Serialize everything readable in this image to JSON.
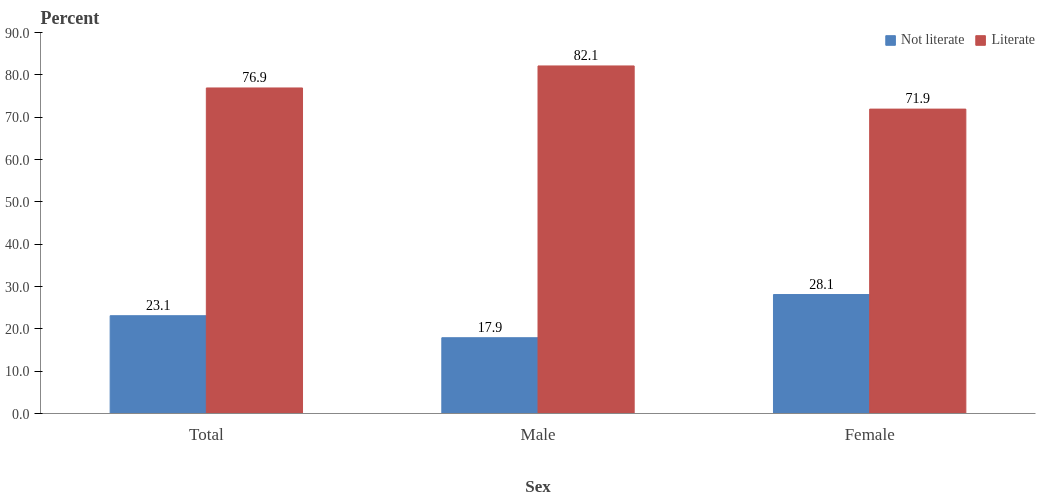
{
  "chart_data": {
    "type": "bar",
    "ylabel": "Percent",
    "xlabel": "Sex",
    "categories": [
      "Total",
      "Male",
      "Female"
    ],
    "series": [
      {
        "name": "Not literate",
        "color": "#4f81bd",
        "values": [
          23.1,
          17.9,
          28.1
        ]
      },
      {
        "name": "Literate",
        "color": "#c0504d",
        "values": [
          76.9,
          82.1,
          71.9
        ]
      }
    ],
    "ylim": [
      0,
      90
    ],
    "yticks": [
      {
        "value": 0,
        "label": "0.0"
      },
      {
        "value": 10,
        "label": "10.0"
      },
      {
        "value": 20,
        "label": "20.0"
      },
      {
        "value": 30,
        "label": "30.0"
      },
      {
        "value": 40,
        "label": "40.0"
      },
      {
        "value": 50,
        "label": "50.0"
      },
      {
        "value": 60,
        "label": "60.0"
      },
      {
        "value": 70,
        "label": "70.0"
      },
      {
        "value": 80,
        "label": "80.0"
      },
      {
        "value": 90,
        "label": "90.0"
      }
    ],
    "data_labels": true,
    "grid": false,
    "legend": "top right"
  }
}
